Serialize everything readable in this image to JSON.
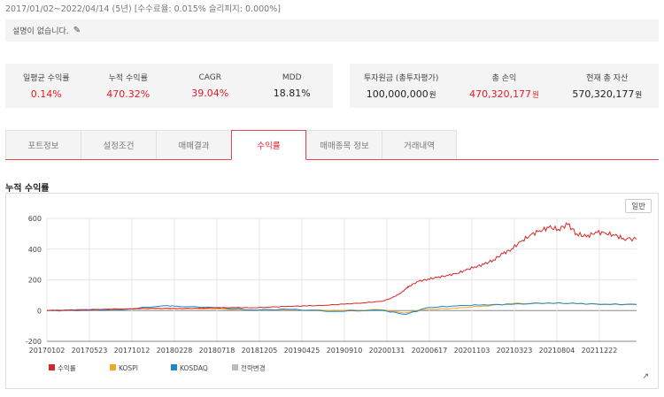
{
  "header": {
    "period": "2017/01/02~2022/04/14 (5년) [수수료율: 0.015% 슬리피지: 0.000%]",
    "description": "설명이 없습니다."
  },
  "stats_left": [
    {
      "label": "일평균 수익률",
      "value": "0.14%",
      "highlight": true
    },
    {
      "label": "누적 수익률",
      "value": "470.32%",
      "highlight": true
    },
    {
      "label": "CAGR",
      "value": "39.04%",
      "highlight": true
    },
    {
      "label": "MDD",
      "value": "18.81%",
      "highlight": false
    }
  ],
  "stats_right": [
    {
      "label": "투자원금 (총투자평가)",
      "value": "100,000,000",
      "unit": "원",
      "highlight": false
    },
    {
      "label": "총 손익",
      "value": "470,320,177",
      "unit": "원",
      "highlight": true
    },
    {
      "label": "현재 총 자산",
      "value": "570,320,177",
      "unit": "원",
      "highlight": false
    }
  ],
  "tabs": [
    "포트정보",
    "설정조건",
    "매매결과",
    "수익률",
    "매매종목 정보",
    "거래내역"
  ],
  "active_tab": "수익률",
  "section_title": "누적 수익률",
  "mode_button": "일반",
  "colors": {
    "accent": "#e31b23",
    "series_return": "#d62728",
    "series_kospi": "#f5a623",
    "series_kosdaq": "#1f86c8",
    "series_rebalance": "#bbbbbb"
  },
  "chart_data": {
    "type": "line",
    "ylim": [
      -200,
      600
    ],
    "yticks": [
      -200,
      0,
      200,
      400,
      600
    ],
    "xticks": [
      "20170102",
      "20170523",
      "20171012",
      "20180228",
      "20180718",
      "20181205",
      "20190425",
      "20190910",
      "20200131",
      "20200617",
      "20201103",
      "20210323",
      "20210804",
      "20211222"
    ],
    "xrange": [
      "2017-01-02",
      "2022-04-14"
    ],
    "grid": true,
    "legend_position": "bottom-left",
    "series": [
      {
        "name": "수익률",
        "color": "#d62728",
        "points": [
          [
            "2017-01-02",
            0
          ],
          [
            "2017-03-01",
            3
          ],
          [
            "2017-05-01",
            6
          ],
          [
            "2017-07-01",
            8
          ],
          [
            "2017-09-01",
            10
          ],
          [
            "2017-11-01",
            12
          ],
          [
            "2018-01-01",
            14
          ],
          [
            "2018-03-01",
            12
          ],
          [
            "2018-05-01",
            15
          ],
          [
            "2018-07-01",
            17
          ],
          [
            "2018-09-01",
            20
          ],
          [
            "2018-11-01",
            18
          ],
          [
            "2019-01-01",
            22
          ],
          [
            "2019-03-01",
            28
          ],
          [
            "2019-05-01",
            30
          ],
          [
            "2019-07-01",
            35
          ],
          [
            "2019-09-01",
            42
          ],
          [
            "2019-11-01",
            50
          ],
          [
            "2020-01-02",
            60
          ],
          [
            "2020-02-01",
            80
          ],
          [
            "2020-03-01",
            110
          ],
          [
            "2020-03-20",
            140
          ],
          [
            "2020-04-01",
            160
          ],
          [
            "2020-05-01",
            190
          ],
          [
            "2020-06-01",
            205
          ],
          [
            "2020-07-01",
            215
          ],
          [
            "2020-08-01",
            228
          ],
          [
            "2020-09-01",
            240
          ],
          [
            "2020-10-01",
            262
          ],
          [
            "2020-11-01",
            285
          ],
          [
            "2020-12-01",
            300
          ],
          [
            "2021-01-01",
            330
          ],
          [
            "2021-02-01",
            370
          ],
          [
            "2021-03-01",
            400
          ],
          [
            "2021-04-01",
            450
          ],
          [
            "2021-05-01",
            490
          ],
          [
            "2021-06-01",
            520
          ],
          [
            "2021-07-01",
            540
          ],
          [
            "2021-08-01",
            530
          ],
          [
            "2021-09-01",
            560
          ],
          [
            "2021-10-01",
            500
          ],
          [
            "2021-11-01",
            480
          ],
          [
            "2021-12-01",
            510
          ],
          [
            "2022-01-01",
            505
          ],
          [
            "2022-02-01",
            490
          ],
          [
            "2022-03-01",
            470
          ],
          [
            "2022-04-14",
            465
          ]
        ]
      },
      {
        "name": "KOSPI",
        "color": "#f5a623",
        "points": [
          [
            "2017-01-02",
            0
          ],
          [
            "2017-05-01",
            5
          ],
          [
            "2017-09-01",
            10
          ],
          [
            "2017-12-01",
            15
          ],
          [
            "2018-03-01",
            14
          ],
          [
            "2018-07-01",
            10
          ],
          [
            "2018-11-01",
            5
          ],
          [
            "2019-03-01",
            5
          ],
          [
            "2019-08-01",
            2
          ],
          [
            "2020-01-02",
            5
          ],
          [
            "2020-03-20",
            -15
          ],
          [
            "2020-06-01",
            8
          ],
          [
            "2020-09-01",
            15
          ],
          [
            "2020-12-01",
            30
          ],
          [
            "2021-03-01",
            45
          ],
          [
            "2021-07-01",
            50
          ],
          [
            "2021-10-01",
            45
          ],
          [
            "2022-01-01",
            40
          ],
          [
            "2022-04-14",
            38
          ]
        ]
      },
      {
        "name": "KOSDAQ",
        "color": "#1f86c8",
        "points": [
          [
            "2017-01-02",
            0
          ],
          [
            "2017-05-01",
            2
          ],
          [
            "2017-09-01",
            5
          ],
          [
            "2018-01-20",
            32
          ],
          [
            "2018-03-01",
            28
          ],
          [
            "2018-07-01",
            20
          ],
          [
            "2018-11-01",
            5
          ],
          [
            "2019-03-01",
            8
          ],
          [
            "2019-08-01",
            -5
          ],
          [
            "2020-01-02",
            2
          ],
          [
            "2020-03-20",
            -25
          ],
          [
            "2020-06-01",
            20
          ],
          [
            "2020-09-01",
            30
          ],
          [
            "2020-12-01",
            38
          ],
          [
            "2021-03-01",
            40
          ],
          [
            "2021-07-01",
            50
          ],
          [
            "2021-10-01",
            45
          ],
          [
            "2022-01-01",
            42
          ],
          [
            "2022-04-14",
            40
          ]
        ]
      },
      {
        "name": "전략변경",
        "color": "#bbbbbb",
        "points": []
      }
    ]
  }
}
